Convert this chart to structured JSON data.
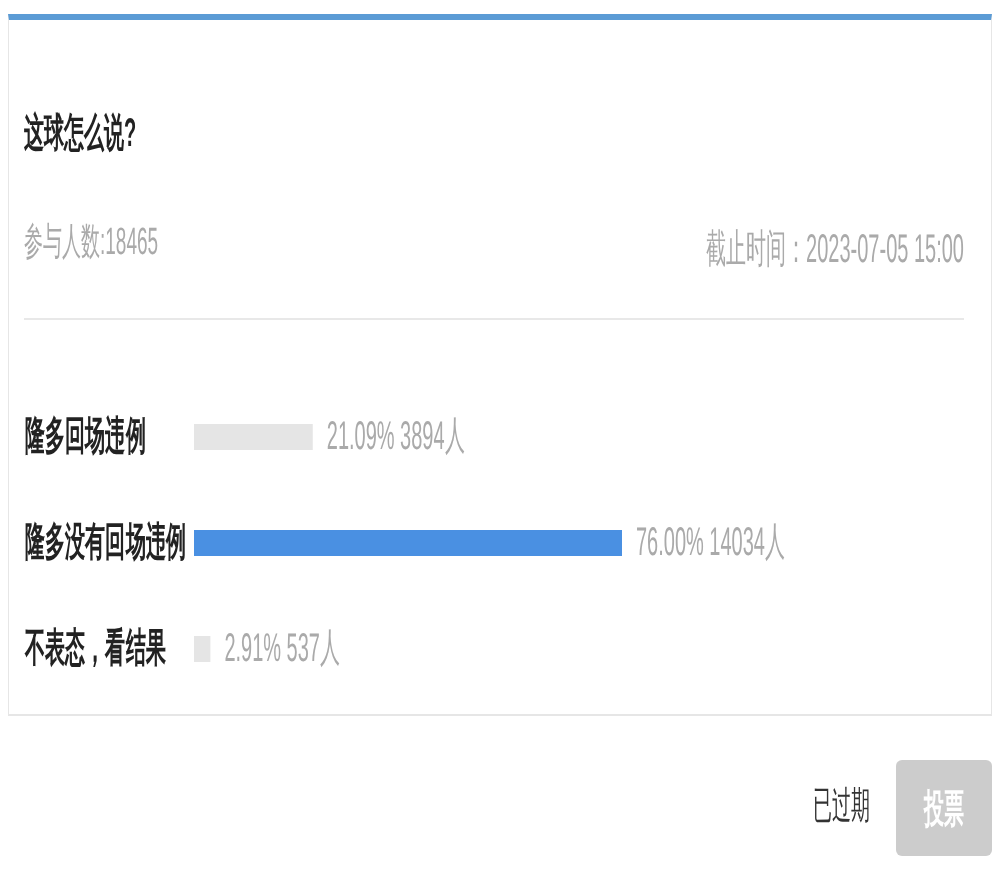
{
  "chart_data": {
    "type": "bar",
    "orientation": "horizontal",
    "title": "这球怎么说?",
    "subtitle": "参与人数:18465",
    "categories": [
      "隆多回场违例",
      "隆多没有回场违例",
      "不表态，看结果"
    ],
    "values": [
      21.09,
      76.0,
      2.91
    ],
    "colors": [
      "#e5e5e5",
      "#4a90e2",
      "#e5e5e5"
    ],
    "value_labels": [
      "21.09% 3894人",
      "76.00% 14034人",
      "2.91% 537人"
    ],
    "tick_labels": "y",
    "annotations": [
      "截止时间：2023-07-05 15:00",
      "已过期",
      "投票"
    ]
  }
}
